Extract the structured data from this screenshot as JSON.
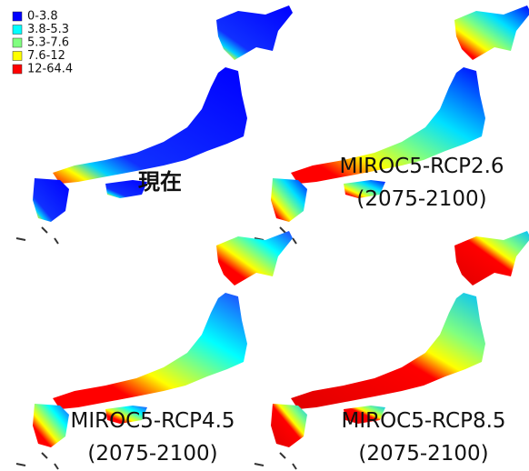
{
  "legend": {
    "items": [
      {
        "label": "0-3.8",
        "color": "#0000ff"
      },
      {
        "label": "3.8-5.3",
        "color": "#00ffff"
      },
      {
        "label": "5.3-7.6",
        "color": "#80ff80"
      },
      {
        "label": "7.6-12",
        "color": "#ffff00"
      },
      {
        "label": "12-64.4",
        "color": "#ff0000"
      }
    ]
  },
  "panels": [
    {
      "label": "現在"
    },
    {
      "label": "MIROC5-RCP2.6",
      "period": "(2075-2100)"
    },
    {
      "label": "MIROC5-RCP4.5",
      "period": "(2075-2100)"
    },
    {
      "label": "MIROC5-RCP8.5",
      "period": "(2075-2100)"
    }
  ]
}
